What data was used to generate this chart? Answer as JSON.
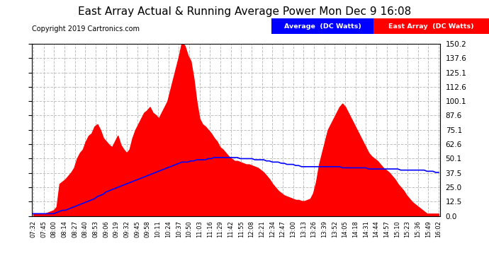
{
  "title": "East Array Actual & Running Average Power Mon Dec 9 16:08",
  "copyright": "Copyright 2019 Cartronics.com",
  "legend_avg": "Average  (DC Watts)",
  "legend_east": "East Array  (DC Watts)",
  "ylim": [
    0.0,
    150.2
  ],
  "yticks": [
    0.0,
    12.5,
    25.0,
    37.5,
    50.1,
    62.6,
    75.1,
    87.6,
    100.1,
    112.6,
    125.1,
    137.6,
    150.2
  ],
  "bg_color": "#ffffff",
  "plot_bg_color": "#ffffff",
  "grid_color": "#c0c0c0",
  "bar_color": "#ff0000",
  "avg_line_color": "#0000ff",
  "title_fontsize": 11,
  "x_labels": [
    "07:32",
    "07:45",
    "08:00",
    "08:14",
    "08:27",
    "08:40",
    "08:53",
    "09:06",
    "09:19",
    "09:32",
    "09:45",
    "09:58",
    "10:11",
    "10:24",
    "10:37",
    "10:50",
    "11:03",
    "11:16",
    "11:29",
    "11:42",
    "11:55",
    "12:08",
    "12:21",
    "12:34",
    "12:47",
    "13:00",
    "13:13",
    "13:26",
    "13:39",
    "13:52",
    "14:05",
    "14:18",
    "14:31",
    "14:44",
    "14:57",
    "15:10",
    "15:23",
    "15:36",
    "15:49",
    "16:02"
  ],
  "east_array_values": [
    2,
    2,
    2,
    2,
    2,
    3,
    4,
    5,
    8,
    28,
    30,
    32,
    35,
    38,
    42,
    50,
    55,
    58,
    65,
    70,
    72,
    78,
    80,
    75,
    68,
    65,
    62,
    60,
    65,
    70,
    62,
    58,
    55,
    58,
    68,
    75,
    80,
    85,
    90,
    92,
    95,
    90,
    88,
    85,
    90,
    95,
    100,
    110,
    120,
    130,
    140,
    152,
    148,
    140,
    135,
    120,
    100,
    85,
    80,
    78,
    75,
    72,
    68,
    65,
    60,
    58,
    55,
    52,
    50,
    48,
    48,
    47,
    46,
    45,
    45,
    44,
    43,
    42,
    40,
    38,
    35,
    32,
    28,
    25,
    22,
    20,
    18,
    17,
    16,
    15,
    14,
    14,
    13,
    13,
    14,
    15,
    20,
    30,
    45,
    55,
    65,
    75,
    80,
    85,
    90,
    95,
    98,
    95,
    90,
    85,
    80,
    75,
    70,
    65,
    60,
    55,
    52,
    50,
    48,
    45,
    42,
    40,
    38,
    35,
    32,
    28,
    25,
    22,
    18,
    15,
    12,
    10,
    8,
    6,
    4,
    2,
    2,
    2,
    2,
    2
  ],
  "avg_values": [
    2,
    2,
    2,
    2,
    2,
    2,
    2,
    2,
    3,
    4,
    5,
    5,
    6,
    7,
    8,
    9,
    10,
    11,
    12,
    13,
    14,
    15,
    17,
    18,
    19,
    21,
    22,
    23,
    24,
    25,
    26,
    27,
    28,
    29,
    30,
    31,
    32,
    33,
    34,
    35,
    36,
    37,
    38,
    39,
    40,
    41,
    42,
    43,
    44,
    45,
    46,
    47,
    47,
    47,
    48,
    48,
    49,
    49,
    49,
    49,
    50,
    50,
    51,
    51,
    51,
    51,
    51,
    51,
    51,
    51,
    51,
    50,
    50,
    50,
    50,
    50,
    49,
    49,
    49,
    49,
    48,
    48,
    47,
    47,
    47,
    46,
    46,
    45,
    45,
    45,
    44,
    44,
    43,
    43,
    43,
    43,
    43,
    43,
    43,
    43,
    43,
    43,
    43,
    43,
    43,
    43,
    42,
    42,
    42,
    42,
    42,
    42,
    42,
    42,
    42,
    41,
    41,
    41,
    41,
    41,
    41,
    41,
    41,
    41,
    41,
    41,
    40,
    40,
    40,
    40,
    40,
    40,
    40,
    40,
    40,
    39,
    39,
    39,
    38,
    38
  ]
}
